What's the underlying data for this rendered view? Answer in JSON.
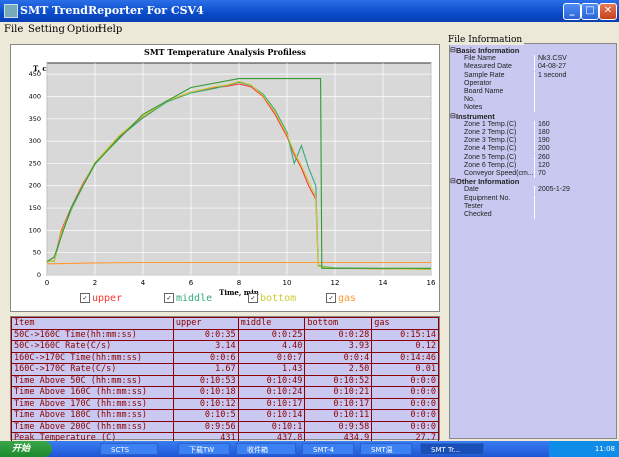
{
  "window": {
    "title": "SMT TrendReporter For CSV4"
  },
  "menu": {
    "items": [
      "File",
      "Setting",
      "Option",
      "Help"
    ]
  },
  "chart_data": {
    "type": "line",
    "title": "SMT Temperature Analysis Profiless",
    "xlabel": "Time, min",
    "ylabel": "T, c",
    "xlim": [
      0,
      16
    ],
    "ylim": [
      0,
      475
    ],
    "xticks": [
      0,
      2,
      4,
      6,
      8,
      10,
      12,
      14,
      16
    ],
    "yticks": [
      0,
      50,
      100,
      150,
      200,
      250,
      300,
      350,
      400,
      450
    ],
    "grid": true,
    "series": [
      {
        "name": "upper",
        "color": "#ff3333",
        "x": [
          0,
          0.3,
          0.6,
          1,
          1.5,
          2,
          3,
          4,
          5,
          6,
          7,
          7.5,
          8,
          8.5,
          9,
          9.5,
          10,
          10.3,
          10.6,
          10.9,
          11.2,
          11.3,
          11.5,
          12,
          16
        ],
        "values": [
          30,
          31,
          100,
          150,
          205,
          250,
          310,
          355,
          390,
          410,
          420,
          423,
          428,
          422,
          400,
          360,
          310,
          270,
          240,
          200,
          170,
          20,
          18,
          15,
          13
        ]
      },
      {
        "name": "middle",
        "color": "#33aa77",
        "x": [
          0,
          0.3,
          0.6,
          1,
          1.5,
          2,
          3,
          4,
          5,
          6,
          7,
          7.5,
          8,
          8.5,
          9,
          9.5,
          10,
          10.3,
          10.6,
          10.9,
          11.2,
          11.3,
          11.5,
          12,
          16
        ],
        "values": [
          30,
          31,
          90,
          145,
          200,
          248,
          308,
          352,
          388,
          408,
          418,
          425,
          432,
          425,
          405,
          370,
          320,
          250,
          290,
          240,
          200,
          22,
          19,
          16,
          13
        ]
      },
      {
        "name": "bottom",
        "color": "#cccc33",
        "x": [
          0,
          0.3,
          0.6,
          1,
          1.5,
          2,
          3,
          4,
          5,
          6,
          7,
          7.5,
          8,
          8.5,
          9,
          9.5,
          10,
          10.3,
          10.6,
          10.9,
          11.2,
          11.3,
          11.5,
          12,
          16
        ],
        "values": [
          30,
          31,
          95,
          148,
          202,
          252,
          312,
          356,
          390,
          410,
          422,
          426,
          434,
          426,
          402,
          365,
          315,
          275,
          245,
          210,
          175,
          20,
          18,
          15,
          13
        ]
      },
      {
        "name": "gas",
        "color": "#ff9933",
        "x": [
          0,
          1,
          2,
          4,
          6,
          8,
          9,
          10,
          11,
          11.4,
          11.5,
          12,
          16
        ],
        "values": [
          25,
          26,
          27,
          28,
          28,
          28,
          28,
          28,
          28,
          28,
          28,
          28,
          28
        ]
      },
      {
        "name": "",
        "color": "#339933",
        "x": [
          0,
          0.3,
          1,
          2,
          4,
          6,
          8,
          9,
          10,
          11,
          11.4,
          11.45,
          12,
          16
        ],
        "values": [
          30,
          40,
          150,
          250,
          360,
          420,
          440,
          440,
          440,
          440,
          440,
          15,
          15,
          15
        ]
      }
    ]
  },
  "legend": {
    "items": [
      {
        "label": "upper",
        "color": "#ff3333"
      },
      {
        "label": "middle",
        "color": "#33aa77"
      },
      {
        "label": "bottom",
        "color": "#cccc33"
      },
      {
        "label": "gas",
        "color": "#ff9933"
      }
    ]
  },
  "table": {
    "headers": [
      "Item",
      "upper",
      "middle",
      "bottom",
      "gas"
    ],
    "rows": [
      [
        "50C->160C Time(hh:mm:ss)",
        "0:0:35",
        "0:0:25",
        "0:0:28",
        "0:15:14"
      ],
      [
        "50C->160C Rate(C/s)",
        "3.14",
        "4.40",
        "3.93",
        "0.12"
      ],
      [
        "160C->170C Time(hh:mm:ss)",
        "0:0:6",
        "0:0:7",
        "0:0:4",
        "0:14:46"
      ],
      [
        "160C->170C Rate(C/s)",
        "1.67",
        "1.43",
        "2.50",
        "0.01"
      ],
      [
        "Time Above 50C (hh:mm:ss)",
        "0:10:53",
        "0:10:49",
        "0:10:52",
        "0:0:0"
      ],
      [
        "Time Above 160C (hh:mm:ss)",
        "0:10:18",
        "0:10:24",
        "0:10:21",
        "0:0:0"
      ],
      [
        "Time Above 170C (hh:mm:ss)",
        "0:10:12",
        "0:10:17",
        "0:10:17",
        "0:0:0"
      ],
      [
        "Time Above 180C (hh:mm:ss)",
        "0:10:5",
        "0:10:14",
        "0:10:11",
        "0:0:0"
      ],
      [
        "Time Above 200C (hh:mm:ss)",
        "0:9:56",
        "0:10:1",
        "0:9:58",
        "0:0:0"
      ],
      [
        "Peak Temperature (C)",
        "431",
        "437.8",
        "434.9",
        "27.7"
      ]
    ]
  },
  "info": {
    "group_label": "File Information",
    "rows": [
      {
        "type": "sec",
        "k": "Basic Information",
        "v": ""
      },
      {
        "type": "row",
        "k": "File Name",
        "v": "Nk3.CSV"
      },
      {
        "type": "row",
        "k": "Measured Date",
        "v": "04-08-27"
      },
      {
        "type": "row",
        "k": "Sample Rate",
        "v": "1 second"
      },
      {
        "type": "row",
        "k": "Operator",
        "v": ""
      },
      {
        "type": "row",
        "k": "Board Name",
        "v": ""
      },
      {
        "type": "row",
        "k": "No.",
        "v": ""
      },
      {
        "type": "row",
        "k": "Notes",
        "v": ""
      },
      {
        "type": "sec",
        "k": "Instrument",
        "v": ""
      },
      {
        "type": "row",
        "k": "Zone 1 Temp.(C)",
        "v": "160"
      },
      {
        "type": "row",
        "k": "Zone 2 Temp.(C)",
        "v": "180"
      },
      {
        "type": "row",
        "k": "Zone 3 Temp.(C)",
        "v": "190"
      },
      {
        "type": "row",
        "k": "Zone 4 Temp.(C)",
        "v": "200"
      },
      {
        "type": "row",
        "k": "Zone 5 Temp.(C)",
        "v": "260"
      },
      {
        "type": "row",
        "k": "Zone 6 Temp.(C)",
        "v": "120"
      },
      {
        "type": "row",
        "k": "Conveyor Speed(cm...",
        "v": "70"
      },
      {
        "type": "sec",
        "k": "Other Information",
        "v": ""
      },
      {
        "type": "row",
        "k": "Date",
        "v": "2005-1-29"
      },
      {
        "type": "row",
        "k": "Equipment No.",
        "v": ""
      },
      {
        "type": "row",
        "k": "Tester",
        "v": ""
      },
      {
        "type": "row",
        "k": "Checked",
        "v": ""
      }
    ]
  },
  "taskbar": {
    "start": "开始",
    "buttons": [
      "SCTS",
      "下载TW",
      "收件箱",
      "SMT-4",
      "SMT温",
      "SMT Tr..."
    ],
    "clock": "11:08"
  }
}
